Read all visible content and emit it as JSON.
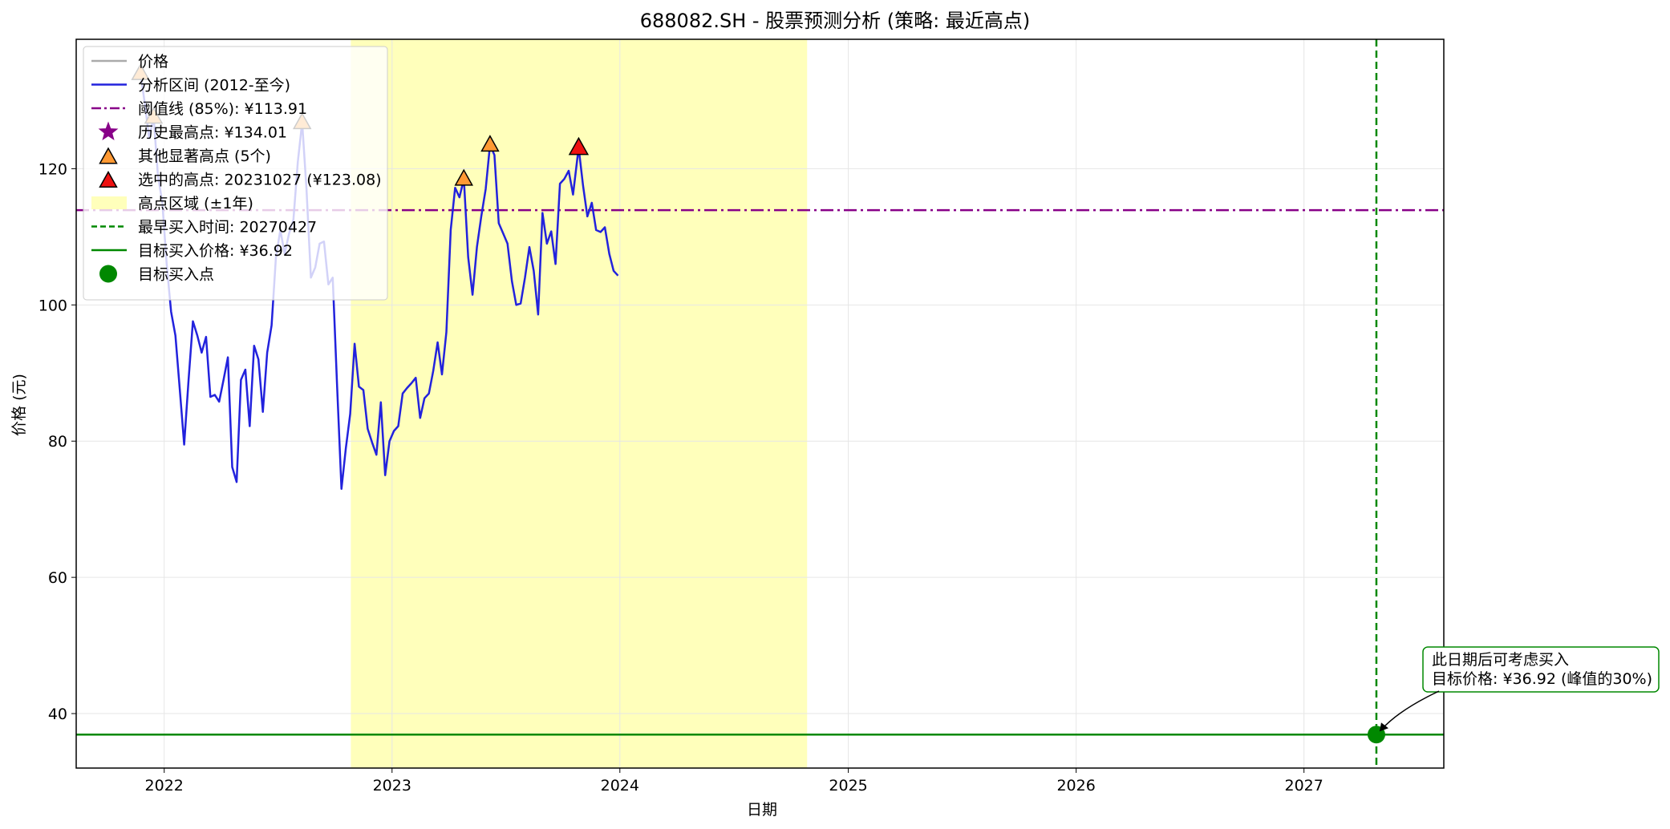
{
  "chart_data": {
    "type": "line",
    "title": "688082.SH  - 股票预测分析 (策略: 最近高点)",
    "xlabel": "日期",
    "ylabel": "价格 (元)",
    "xlim": [
      "2021-08-13",
      "2027-08-13"
    ],
    "ylim": [
      32,
      139
    ],
    "x_ticks": [
      "2022",
      "2023",
      "2024",
      "2025",
      "2026",
      "2027"
    ],
    "y_ticks": [
      40,
      60,
      80,
      100,
      120
    ],
    "grid": true,
    "legend_position": "upper-left",
    "colors": {
      "price": "#aaaaaa",
      "analysis": "#2222dd",
      "threshold": "#880088",
      "other_peaks": "#ff9933",
      "selected_peak": "#ee1111",
      "peak_region": "#ffffbb",
      "buy": "#008800"
    },
    "series": [
      {
        "name": "分析区间 (2012-至今)",
        "points": [
          [
            "2021-11-24",
            134.0
          ],
          [
            "2021-12-01",
            129.5
          ],
          [
            "2021-12-08",
            124.5
          ],
          [
            "2021-12-15",
            127.6
          ],
          [
            "2021-12-22",
            119.0
          ],
          [
            "2021-12-29",
            115.0
          ],
          [
            "2022-01-05",
            106.0
          ],
          [
            "2022-01-12",
            99.0
          ],
          [
            "2022-01-19",
            95.5
          ],
          [
            "2022-01-26",
            87.5
          ],
          [
            "2022-02-02",
            79.5
          ],
          [
            "2022-02-09",
            89.0
          ],
          [
            "2022-02-16",
            97.6
          ],
          [
            "2022-02-23",
            95.5
          ],
          [
            "2022-03-02",
            93.0
          ],
          [
            "2022-03-09",
            95.3
          ],
          [
            "2022-03-16",
            86.5
          ],
          [
            "2022-03-23",
            86.8
          ],
          [
            "2022-03-30",
            85.8
          ],
          [
            "2022-04-06",
            89.0
          ],
          [
            "2022-04-13",
            92.3
          ],
          [
            "2022-04-20",
            76.2
          ],
          [
            "2022-04-27",
            74.0
          ],
          [
            "2022-05-04",
            89.0
          ],
          [
            "2022-05-11",
            90.5
          ],
          [
            "2022-05-18",
            82.2
          ],
          [
            "2022-05-25",
            94.0
          ],
          [
            "2022-06-01",
            92.0
          ],
          [
            "2022-06-08",
            84.3
          ],
          [
            "2022-06-15",
            93.0
          ],
          [
            "2022-06-22",
            97.0
          ],
          [
            "2022-06-29",
            107.0
          ],
          [
            "2022-07-06",
            111.0
          ],
          [
            "2022-07-13",
            107.5
          ],
          [
            "2022-07-20",
            110.5
          ],
          [
            "2022-07-27",
            112.5
          ],
          [
            "2022-08-03",
            121.0
          ],
          [
            "2022-08-10",
            126.8
          ],
          [
            "2022-08-17",
            117.0
          ],
          [
            "2022-08-24",
            104.0
          ],
          [
            "2022-08-31",
            105.5
          ],
          [
            "2022-09-07",
            109.0
          ],
          [
            "2022-09-14",
            109.3
          ],
          [
            "2022-09-21",
            103.0
          ],
          [
            "2022-09-28",
            104.0
          ],
          [
            "2022-10-05",
            88.0
          ],
          [
            "2022-10-12",
            73.0
          ],
          [
            "2022-10-19",
            79.0
          ],
          [
            "2022-10-26",
            84.0
          ],
          [
            "2022-11-02",
            94.3
          ],
          [
            "2022-11-09",
            88.0
          ],
          [
            "2022-11-16",
            87.5
          ],
          [
            "2022-11-23",
            81.8
          ],
          [
            "2022-11-30",
            79.8
          ],
          [
            "2022-12-07",
            78.0
          ],
          [
            "2022-12-14",
            85.7
          ],
          [
            "2022-12-21",
            75.0
          ],
          [
            "2022-12-28",
            80.0
          ],
          [
            "2023-01-04",
            81.5
          ],
          [
            "2023-01-11",
            82.2
          ],
          [
            "2023-01-18",
            87.0
          ],
          [
            "2023-01-25",
            87.8
          ],
          [
            "2023-02-01",
            88.5
          ],
          [
            "2023-02-08",
            89.3
          ],
          [
            "2023-02-15",
            83.4
          ],
          [
            "2023-02-22",
            86.3
          ],
          [
            "2023-03-01",
            87.0
          ],
          [
            "2023-03-08",
            90.3
          ],
          [
            "2023-03-15",
            94.5
          ],
          [
            "2023-03-22",
            89.8
          ],
          [
            "2023-03-29",
            96.0
          ],
          [
            "2023-04-05",
            111.0
          ],
          [
            "2023-04-12",
            117.2
          ],
          [
            "2023-04-19",
            115.8
          ],
          [
            "2023-04-26",
            118.5
          ],
          [
            "2023-05-03",
            107.0
          ],
          [
            "2023-05-10",
            101.5
          ],
          [
            "2023-05-17",
            108.5
          ],
          [
            "2023-05-24",
            113.0
          ],
          [
            "2023-05-31",
            117.0
          ],
          [
            "2023-06-07",
            123.5
          ],
          [
            "2023-06-14",
            122.0
          ],
          [
            "2023-06-21",
            112.0
          ],
          [
            "2023-06-28",
            110.5
          ],
          [
            "2023-07-05",
            109.0
          ],
          [
            "2023-07-12",
            103.5
          ],
          [
            "2023-07-19",
            100.0
          ],
          [
            "2023-07-26",
            100.2
          ],
          [
            "2023-08-02",
            104.0
          ],
          [
            "2023-08-09",
            108.5
          ],
          [
            "2023-08-16",
            105.0
          ],
          [
            "2023-08-23",
            98.6
          ],
          [
            "2023-08-30",
            113.5
          ],
          [
            "2023-09-06",
            109.0
          ],
          [
            "2023-09-13",
            110.8
          ],
          [
            "2023-09-20",
            106.0
          ],
          [
            "2023-09-27",
            117.8
          ],
          [
            "2023-10-04",
            118.5
          ],
          [
            "2023-10-11",
            119.7
          ],
          [
            "2023-10-18",
            116.2
          ],
          [
            "2023-10-27",
            123.08
          ],
          [
            "2023-11-03",
            117.5
          ],
          [
            "2023-11-10",
            113.0
          ],
          [
            "2023-11-17",
            115.0
          ],
          [
            "2023-11-24",
            111.0
          ],
          [
            "2023-12-01",
            110.7
          ],
          [
            "2023-12-08",
            111.4
          ],
          [
            "2023-12-15",
            107.5
          ],
          [
            "2023-12-22",
            105.0
          ],
          [
            "2023-12-29",
            104.3
          ]
        ]
      }
    ],
    "threshold": {
      "name": "阈值线 (85%): ¥113.91",
      "value": 113.91
    },
    "target_price": {
      "name": "目标买入价格: ¥36.92",
      "value": 36.92
    },
    "earliest_buy_date": {
      "name": "最早买入时间: 20270427",
      "x": "2027-04-27"
    },
    "peak_region": {
      "name": "高点区域 (±1年)",
      "x_start": "2022-10-27",
      "x_end": "2024-10-27"
    },
    "historical_high": {
      "name": "历史最高点: ¥134.01",
      "value": 134.01
    },
    "other_peaks": {
      "name": "其他显著高点 (5个)",
      "points": [
        [
          "2021-11-24",
          134.0
        ],
        [
          "2021-12-15",
          127.6
        ],
        [
          "2022-08-10",
          126.8
        ],
        [
          "2023-04-26",
          118.5
        ],
        [
          "2023-06-07",
          123.5
        ]
      ]
    },
    "selected_peak": {
      "name": "选中的高点: 20231027 (¥123.08)",
      "x": "2023-10-27",
      "y": 123.08
    },
    "buy_point": {
      "name": "目标买入点",
      "x": "2027-04-27",
      "y": 36.92
    },
    "annotation": {
      "lines": [
        "此日期后可考虑买入",
        "目标价格: ¥36.92 (峰值的30%)"
      ]
    },
    "legend": [
      {
        "key": "price",
        "label": "价格"
      },
      {
        "key": "analysis",
        "label": "分析区间 (2012-至今)"
      },
      {
        "key": "threshold",
        "label": "阈值线 (85%): ¥113.91"
      },
      {
        "key": "historical_high",
        "label": "历史最高点: ¥134.01"
      },
      {
        "key": "other_peaks",
        "label": "其他显著高点 (5个)"
      },
      {
        "key": "selected_peak",
        "label": "选中的高点: 20231027 (¥123.08)"
      },
      {
        "key": "peak_region",
        "label": "高点区域 (±1年)"
      },
      {
        "key": "earliest_buy",
        "label": "最早买入时间: 20270427"
      },
      {
        "key": "target_price",
        "label": "目标买入价格: ¥36.92"
      },
      {
        "key": "buy_point",
        "label": "目标买入点"
      }
    ]
  }
}
